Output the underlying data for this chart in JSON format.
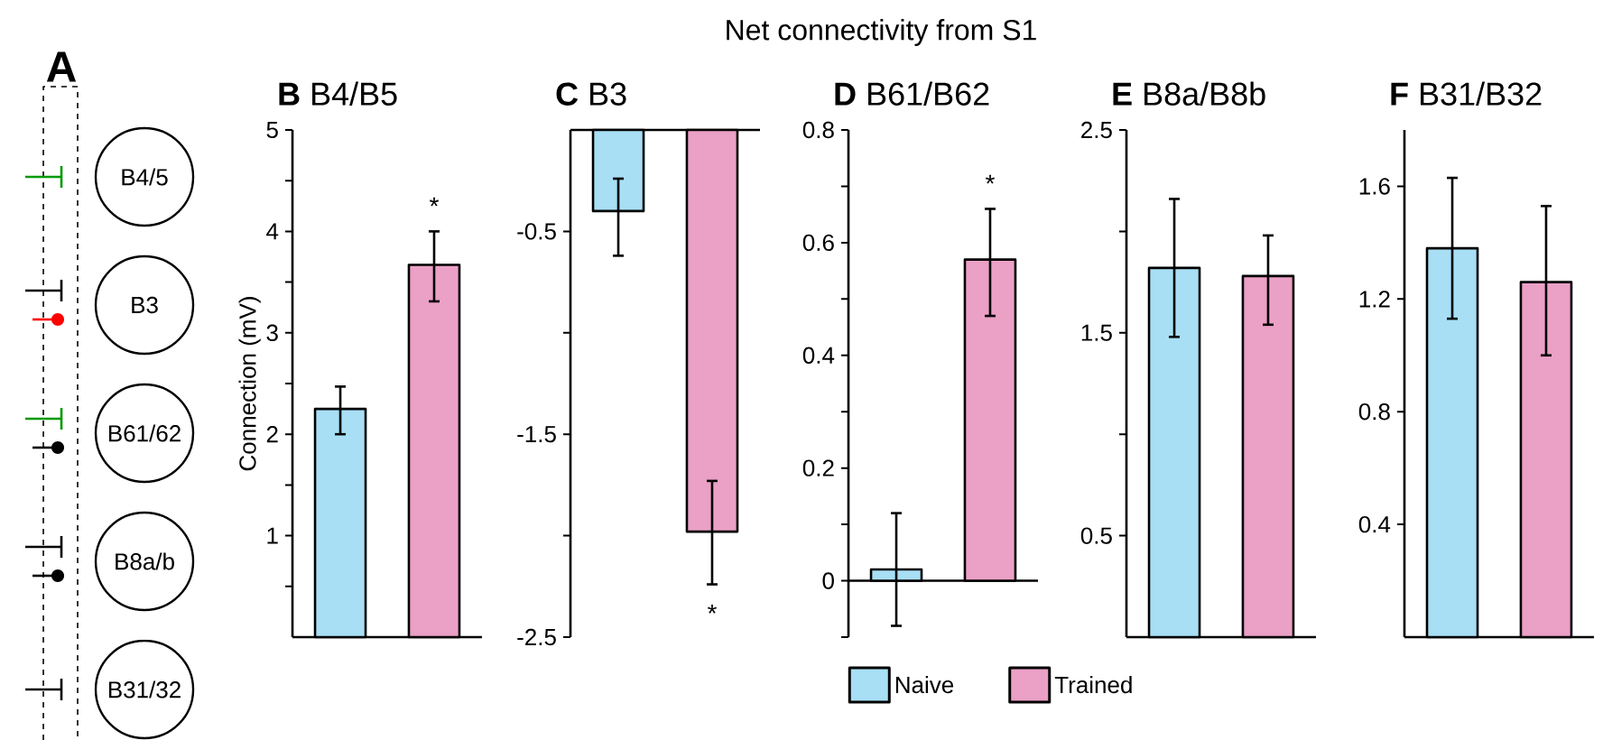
{
  "chart_data": [
    {
      "type": "other",
      "title": "Net connectivity from S1"
    },
    {
      "type": "other",
      "title": "A",
      "annotations": [
        "B4/5",
        "B3",
        "B61/62",
        "B8a/b",
        "B31/32"
      ]
    },
    {
      "type": "bar",
      "title": "**B** B4/B5",
      "ylabel": "Connection (mV)",
      "categories": [
        null
      ],
      "ylim": [
        0,
        5
      ],
      "yticks": [
        {
          "value": 0.5,
          "label": null
        },
        1,
        {
          "value": 1.5,
          "label": null
        },
        2,
        {
          "value": 2.5,
          "label": null
        },
        3,
        {
          "value": 3.5,
          "label": null
        },
        4,
        {
          "value": 4.5,
          "label": null
        },
        5
      ],
      "series": [
        {
          "color": "#a8dff5",
          "values": [
            2.25
          ],
          "errors": [
            [
              2.0,
              2.47
            ]
          ]
        },
        {
          "color": "#eba0c6",
          "values": [
            3.67
          ],
          "errors": [
            [
              3.31,
              4.0
            ]
          ]
        }
      ],
      "annotations": [
        "*"
      ]
    },
    {
      "type": "bar",
      "title": "**C** B3",
      "categories": [
        null
      ],
      "ylim": [
        -2.5,
        0
      ],
      "yticks": [
        -2.5,
        {
          "value": -2,
          "label": null
        },
        -1.5,
        {
          "value": -1,
          "label": null
        },
        -0.5
      ],
      "series": [
        {
          "color": "#a8dff5",
          "values": [
            -0.4
          ],
          "errors": [
            [
              -0.62,
              -0.24
            ]
          ]
        },
        {
          "color": "#eba0c6",
          "values": [
            -1.98
          ],
          "errors": [
            [
              -2.24,
              -1.73
            ]
          ]
        }
      ],
      "annotations": [
        "*"
      ]
    },
    {
      "type": "bar",
      "title": "**D** B61/B62",
      "categories": [
        null
      ],
      "ylim": [
        -0.1,
        0.8
      ],
      "yticks": [
        {
          "value": -0.1,
          "label": null
        },
        0,
        {
          "value": 0.1,
          "label": null
        },
        0.2,
        {
          "value": 0.3,
          "label": null
        },
        0.4,
        {
          "value": 0.5,
          "label": null
        },
        0.6,
        {
          "value": 0.7,
          "label": null
        },
        0.8
      ],
      "series": [
        {
          "name": "Naive",
          "color": "#a8dff5",
          "values": [
            0.02
          ],
          "errors": [
            [
              -0.08,
              0.12
            ]
          ]
        },
        {
          "name": "Trained",
          "color": "#eba0c6",
          "values": [
            0.57
          ],
          "errors": [
            [
              0.47,
              0.66
            ]
          ]
        }
      ],
      "annotations": [
        "*"
      ],
      "legend": "bottom"
    },
    {
      "type": "bar",
      "title": "**E** B8a/B8b",
      "categories": [
        null
      ],
      "ylim": [
        0,
        2.5
      ],
      "yticks": [
        0.5,
        {
          "value": 1,
          "label": null
        },
        1.5,
        {
          "value": 2,
          "label": null
        },
        2.5
      ],
      "series": [
        {
          "color": "#a8dff5",
          "values": [
            1.82
          ],
          "errors": [
            [
              1.48,
              2.16
            ]
          ]
        },
        {
          "color": "#eba0c6",
          "values": [
            1.78
          ],
          "errors": [
            [
              1.54,
              1.98
            ]
          ]
        }
      ]
    },
    {
      "type": "bar",
      "title": "**F** B31/B32",
      "categories": [
        null
      ],
      "ylim": [
        0,
        1.8
      ],
      "yticks": [
        0.4,
        0.8,
        1.2,
        1.6
      ],
      "series": [
        {
          "color": "#a8dff5",
          "values": [
            1.38
          ],
          "errors": [
            [
              1.13,
              1.63
            ]
          ]
        },
        {
          "color": "#eba0c6",
          "values": [
            1.26
          ],
          "errors": [
            [
              1.0,
              1.53
            ]
          ]
        }
      ]
    }
  ]
}
